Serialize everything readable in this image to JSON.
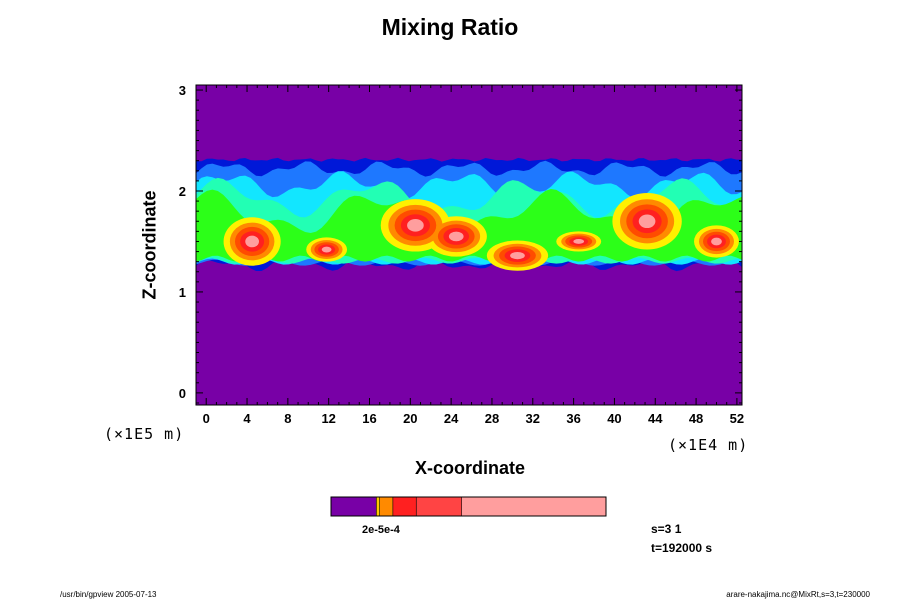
{
  "chart_data": {
    "type": "heatmap",
    "title": "Mixing Ratio",
    "xlabel": "X-coordinate",
    "ylabel": "Z-coordinate",
    "x_ticks": [
      "0",
      "4",
      "8",
      "12",
      "16",
      "20",
      "24",
      "28",
      "32",
      "36",
      "40",
      "44",
      "48",
      "52"
    ],
    "y_ticks": [
      "0",
      "1",
      "2",
      "3"
    ],
    "xlim": [
      -1,
      52.5
    ],
    "ylim": [
      -0.12,
      3.05
    ],
    "x_unit": "(×1E4 m)",
    "y_unit": "(×1E5 m)",
    "colors": {
      "background": "#7800a6",
      "dark_blue": "#0018d8",
      "blue": "#1e78ff",
      "cyan": "#12e6ff",
      "aqua_green": "#22ffb4",
      "green": "#2cff18",
      "yellow": "#fff000",
      "orange": "#ff8a00",
      "red_orange": "#ff4c00",
      "red": "#ff2020",
      "pink": "#ff9e9e",
      "light": "#ffd8d8"
    },
    "colorbar": {
      "label": "2e-5e-4",
      "segments": [
        {
          "color": "#7800a6",
          "fraction": 0.165
        },
        {
          "color": "#ffc800",
          "fraction": 0.012
        },
        {
          "color": "#ff8a00",
          "fraction": 0.048
        },
        {
          "color": "#ff2020",
          "fraction": 0.085
        },
        {
          "color": "#ff4444",
          "fraction": 0.165
        },
        {
          "color": "#ff9e9e",
          "fraction": 0.525
        }
      ]
    },
    "info_s": "s=3 1",
    "info_t": "t=192000 s"
  },
  "footer": {
    "left": "/usr/bin/gpview 2005-07-13",
    "right": "arare-nakajima.nc@MixRt,s=3,t=230000"
  }
}
